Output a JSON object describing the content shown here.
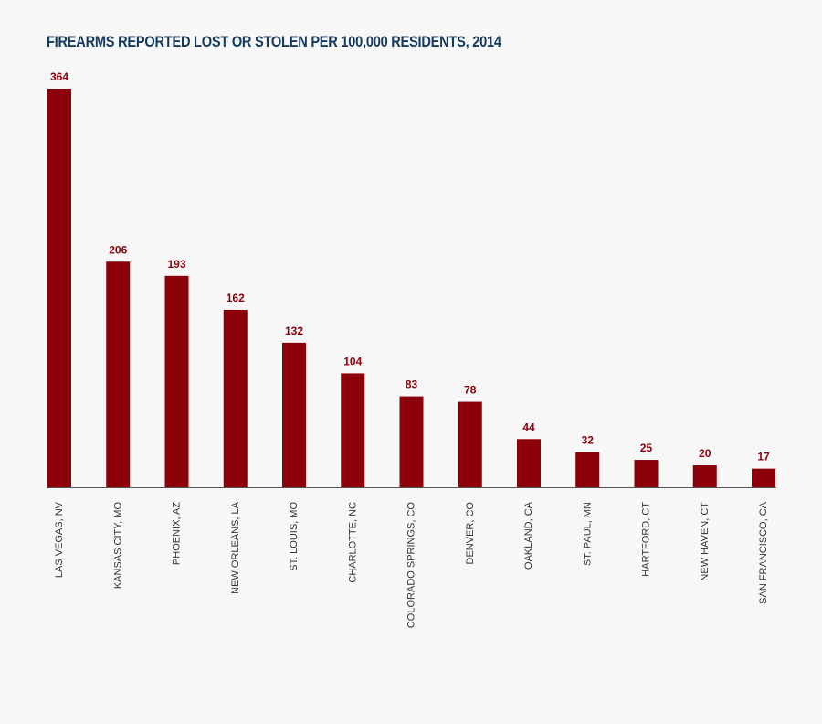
{
  "chart_data": {
    "type": "bar",
    "title": "FIREARMS REPORTED LOST OR STOLEN PER 100,000 RESIDENTS, 2014",
    "xlabel": "",
    "ylabel": "",
    "ylim": [
      0,
      364
    ],
    "grid": false,
    "categories": [
      "LAS VEGAS,  NV",
      "KANSAS CITY, MO",
      "PHOENIX, AZ",
      "NEW ORLEANS, LA",
      "ST. LOUIS, MO",
      "CHARLOTTE, NC",
      "COLORADO SPRINGS, CO",
      "DENVER, CO",
      "OAKLAND, CA",
      "ST. PAUL, MN",
      "HARTFORD,  CT",
      "NEW HAVEN, CT",
      "SAN FRANCISCO, CA"
    ],
    "values": [
      364,
      206,
      193,
      162,
      132,
      104,
      83,
      78,
      44,
      32,
      25,
      20,
      17
    ],
    "colors": {
      "bar": "#8b0009",
      "value_label": "#8b0009",
      "axis": "#555555",
      "title": "#15395e"
    }
  }
}
